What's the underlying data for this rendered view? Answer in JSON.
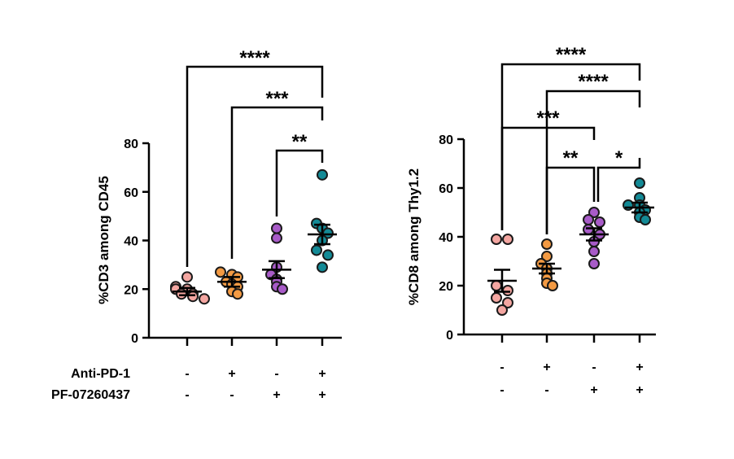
{
  "chart_data": [
    {
      "type": "scatter",
      "ylabel": "%CD3 among CD45",
      "ylim": [
        0,
        80
      ],
      "yticks": [
        0,
        20,
        40,
        60,
        80
      ],
      "groups": [
        {
          "anti_pd1": "-",
          "pf": "-",
          "color": "#F4A6A1",
          "mean": 19,
          "sem": 1.5,
          "points": [
            25,
            21,
            20,
            20,
            18,
            18,
            17,
            16
          ]
        },
        {
          "anti_pd1": "+",
          "pf": "-",
          "color": "#F39A43",
          "mean": 23,
          "sem": 2,
          "points": [
            27,
            26,
            25,
            23,
            22,
            21,
            19,
            18
          ]
        },
        {
          "anti_pd1": "-",
          "pf": "+",
          "color": "#A85BC8",
          "mean": 28,
          "sem": 3.5,
          "points": [
            45,
            41,
            29,
            26,
            24,
            23,
            21,
            20
          ]
        },
        {
          "anti_pd1": "+",
          "pf": "+",
          "color": "#138A96",
          "mean": 42.5,
          "sem": 4,
          "points": [
            67,
            47,
            45,
            43,
            40,
            36,
            34,
            29
          ]
        }
      ],
      "comparisons": [
        {
          "from": 0,
          "to": 3,
          "label": "****"
        },
        {
          "from": 1,
          "to": 3,
          "label": "***"
        },
        {
          "from": 2,
          "to": 3,
          "label": "**"
        }
      ],
      "row_labels": [
        "Anti-PD-1",
        "PF-07260437"
      ]
    },
    {
      "type": "scatter",
      "ylabel": "%CD8 among Thy1.2",
      "ylim": [
        0,
        80
      ],
      "yticks": [
        0,
        20,
        40,
        60,
        80
      ],
      "groups": [
        {
          "anti_pd1": "-",
          "pf": "-",
          "color": "#F4A6A1",
          "mean": 22,
          "sem": 4.5,
          "points": [
            39,
            39,
            20,
            18,
            15,
            13,
            10
          ]
        },
        {
          "anti_pd1": "+",
          "pf": "-",
          "color": "#F39A43",
          "mean": 27,
          "sem": 2,
          "points": [
            37,
            32,
            29,
            27,
            25,
            23,
            21,
            20
          ]
        },
        {
          "anti_pd1": "-",
          "pf": "+",
          "color": "#A85BC8",
          "mean": 41,
          "sem": 2.5,
          "points": [
            50,
            47,
            46,
            43,
            41,
            38,
            34,
            29
          ]
        },
        {
          "anti_pd1": "+",
          "pf": "+",
          "color": "#138A96",
          "mean": 52,
          "sem": 2,
          "points": [
            62,
            56,
            53,
            53,
            51,
            50,
            48,
            47
          ]
        }
      ],
      "comparisons": [
        {
          "from": 0,
          "to": 3,
          "label": "****"
        },
        {
          "from": 1,
          "to": 3,
          "label": "****"
        },
        {
          "from": 0,
          "to": 2,
          "label": "***"
        },
        {
          "from": 1,
          "to": 2,
          "label": "**"
        },
        {
          "from": 2,
          "to": 3,
          "label": "*"
        }
      ]
    }
  ]
}
